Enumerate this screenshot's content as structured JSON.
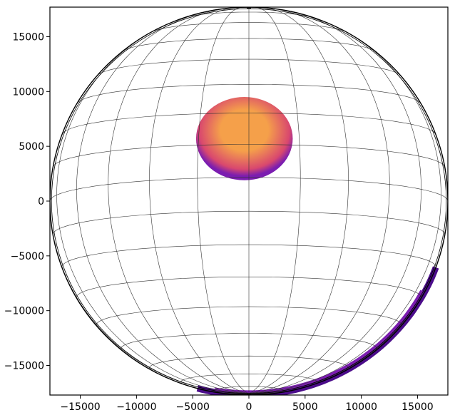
{
  "chart_data": {
    "type": "heatmap",
    "title": "",
    "xlabel": "",
    "ylabel": "",
    "xlim": [
      -17700,
      17700
    ],
    "ylim": [
      -17700,
      17700
    ],
    "sphere_radius": 17700,
    "x_ticks": [
      {
        "value": -15000,
        "label": "−15000"
      },
      {
        "value": -10000,
        "label": "−10000"
      },
      {
        "value": -5000,
        "label": "−5000"
      },
      {
        "value": 0,
        "label": "0"
      },
      {
        "value": 5000,
        "label": "5000"
      },
      {
        "value": 10000,
        "label": "10000"
      },
      {
        "value": 15000,
        "label": "15000"
      }
    ],
    "y_ticks": [
      {
        "value": 15000,
        "label": "15000"
      },
      {
        "value": 10000,
        "label": "10000"
      },
      {
        "value": 5000,
        "label": "5000"
      },
      {
        "value": 0,
        "label": "0"
      },
      {
        "value": -5000,
        "label": "−5000"
      },
      {
        "value": -10000,
        "label": "−10000"
      },
      {
        "value": -15000,
        "label": "−15000"
      }
    ],
    "grid": true,
    "graticule": {
      "view_tilt_deg": 7,
      "meridian_step_deg": 15,
      "parallel_step_deg": 10
    },
    "blob": {
      "center": [
        -400,
        5700
      ],
      "radius_x": 4300,
      "radius_y": 3800
    },
    "colors": {
      "hot": "#f5a04a",
      "mid": "#d9486e",
      "edge": "#7b1db0",
      "rim": "#4b0c8a",
      "grid": "#333333"
    }
  }
}
